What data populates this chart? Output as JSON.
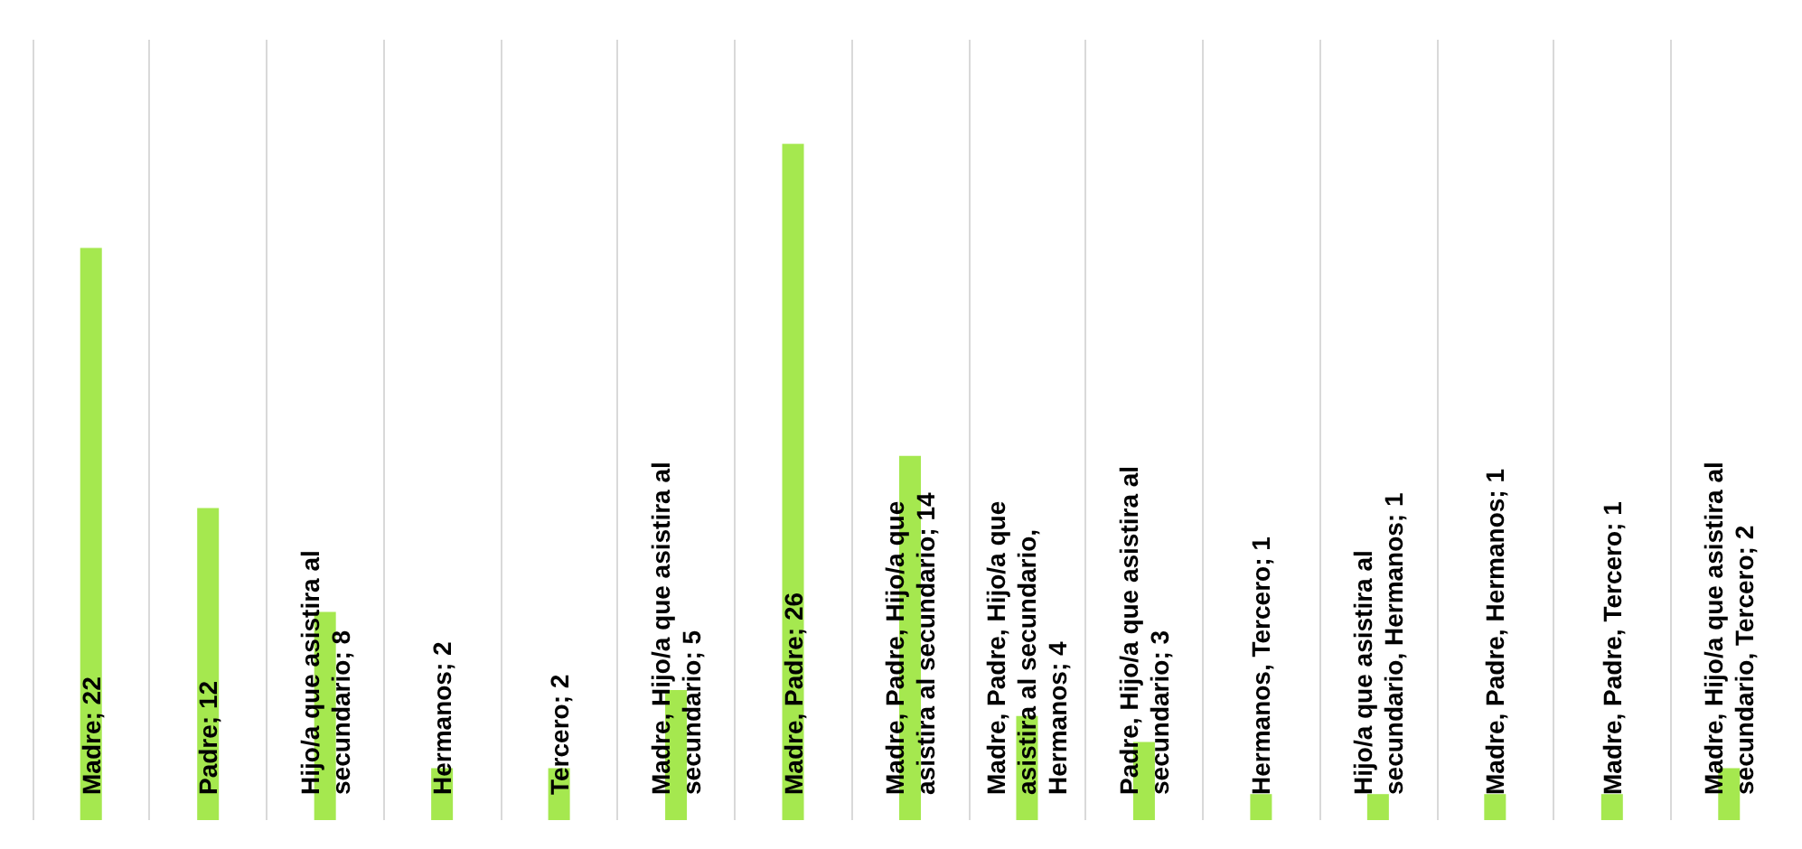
{
  "chart_data": {
    "type": "bar",
    "categories": [
      null,
      null,
      null,
      null,
      null,
      null,
      null,
      null,
      null,
      null,
      null,
      null,
      null,
      null,
      null
    ],
    "values": [
      22,
      12,
      8,
      2,
      2,
      5,
      26,
      14,
      4,
      3,
      1,
      1,
      1,
      1,
      2
    ],
    "value_labels": [
      "Madre; 22",
      "Padre; 12",
      "Hijo/a que asistira al secundario; 8",
      "Hermanos; 2",
      "Tercero; 2",
      "Madre, Hijo/a que asistira al secundario; 5",
      "Madre, Padre; 26",
      "Madre, Padre, Hijo/a que asistira al secundario; 14",
      "Madre, Padre, Hijo/a que asistira al secundario, Hermanos; 4",
      "Padre, Hijo/a que asistira al secundario; 3",
      "Hermanos, Tercero; 1",
      "Hijo/a que asistira al secundario, Hermanos; 1",
      "Madre, Padre, Hermanos; 1",
      "Madre, Padre, Tercero; 1",
      "Madre, Hijo/a que asistira al secundario, Tercero; 2"
    ],
    "color": "#a5e84f",
    "grid": "x"
  }
}
